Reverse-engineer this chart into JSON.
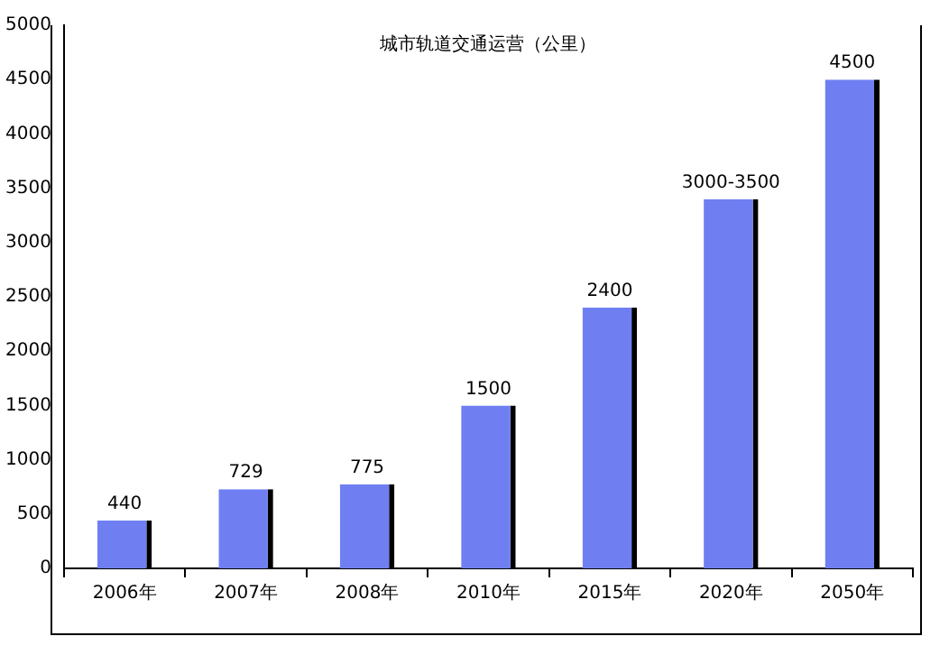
{
  "chart_data": {
    "type": "bar",
    "title": "城市轨道交通运营（公里）",
    "categories": [
      "2006年",
      "2007年",
      "2008年",
      "2010年",
      "2015年",
      "2020年",
      "2050年"
    ],
    "values": [
      440,
      729,
      775,
      1500,
      2400,
      3400,
      4500
    ],
    "value_labels": [
      "440",
      "729",
      "775",
      "1500",
      "2400",
      "3000-3500",
      "4500"
    ],
    "color": "#6f7ff2",
    "ylim": [
      0,
      5000
    ],
    "yticks": [
      0,
      500,
      1000,
      1500,
      2000,
      2500,
      3000,
      3500,
      4000,
      4500,
      5000
    ],
    "grid": false,
    "legend": false
  }
}
